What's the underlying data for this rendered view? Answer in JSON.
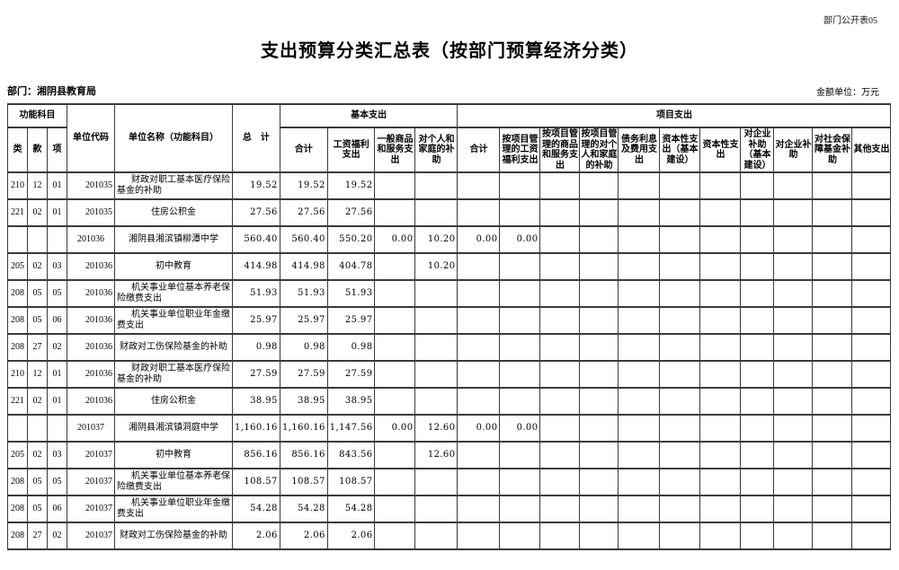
{
  "page": {
    "doc_code": "部门公开表05",
    "title": "支出预算分类汇总表（按部门预算经济分类）",
    "department_label": "部门：湘阴县教育局",
    "unit_label": "金额单位：万元"
  },
  "table": {
    "header": {
      "func_group": "功能科目",
      "func_cols": [
        "类",
        "款",
        "项"
      ],
      "unit_code": "单位代码",
      "unit_name": "单位名称（功能科目）",
      "total": "总　计",
      "basic_group": "基本支出",
      "basic_cols": [
        "合计",
        "工资福利支出",
        "一般商品和服务支出",
        "对个人和家庭的补助"
      ],
      "project_group": "项目支出",
      "project_cols": [
        "合计",
        "按项目管理的工资福利支出",
        "按项目管理的商品和服务支出",
        "按项目管理的对个人和家庭的补助",
        "债务利息及费用支出",
        "资本性支出（基本建设）",
        "资本性支出",
        "对企业补助（基本建设）",
        "对企业补助",
        "对社会保障基金补助",
        "其他支出"
      ]
    },
    "rows": [
      {
        "lei": "210",
        "kuan": "12",
        "xiang": "01",
        "code": "201035",
        "name": "财政对职工基本医疗保险基金的补助",
        "values": [
          "19.52",
          "19.52",
          "19.52",
          "",
          "",
          "",
          "",
          "",
          "",
          "",
          "",
          "",
          "",
          "",
          "",
          ""
        ]
      },
      {
        "lei": "221",
        "kuan": "02",
        "xiang": "01",
        "code": "201035",
        "name": "住房公积金",
        "values": [
          "27.56",
          "27.56",
          "27.56",
          "",
          "",
          "",
          "",
          "",
          "",
          "",
          "",
          "",
          "",
          "",
          "",
          ""
        ]
      },
      {
        "lei": "",
        "kuan": "",
        "xiang": "",
        "code": "201036",
        "name": "湘阴县湘滨镇柳潭中学",
        "values": [
          "560.40",
          "560.40",
          "550.20",
          "0.00",
          "10.20",
          "0.00",
          "0.00",
          "",
          "",
          "",
          "",
          "",
          "",
          "",
          "",
          ""
        ]
      },
      {
        "lei": "205",
        "kuan": "02",
        "xiang": "03",
        "code": "201036",
        "name": "初中教育",
        "values": [
          "414.98",
          "414.98",
          "404.78",
          "",
          "10.20",
          "",
          "",
          "",
          "",
          "",
          "",
          "",
          "",
          "",
          "",
          ""
        ]
      },
      {
        "lei": "208",
        "kuan": "05",
        "xiang": "05",
        "code": "201036",
        "name": "机关事业单位基本养老保险缴费支出",
        "values": [
          "51.93",
          "51.93",
          "51.93",
          "",
          "",
          "",
          "",
          "",
          "",
          "",
          "",
          "",
          "",
          "",
          "",
          ""
        ]
      },
      {
        "lei": "208",
        "kuan": "05",
        "xiang": "06",
        "code": "201036",
        "name": "机关事业单位职业年金缴费支出",
        "values": [
          "25.97",
          "25.97",
          "25.97",
          "",
          "",
          "",
          "",
          "",
          "",
          "",
          "",
          "",
          "",
          "",
          "",
          ""
        ]
      },
      {
        "lei": "208",
        "kuan": "27",
        "xiang": "02",
        "code": "201036",
        "name": "财政对工伤保险基金的补助",
        "values": [
          "0.98",
          "0.98",
          "0.98",
          "",
          "",
          "",
          "",
          "",
          "",
          "",
          "",
          "",
          "",
          "",
          "",
          ""
        ]
      },
      {
        "lei": "210",
        "kuan": "12",
        "xiang": "01",
        "code": "201036",
        "name": "财政对职工基本医疗保险基金的补助",
        "values": [
          "27.59",
          "27.59",
          "27.59",
          "",
          "",
          "",
          "",
          "",
          "",
          "",
          "",
          "",
          "",
          "",
          "",
          ""
        ]
      },
      {
        "lei": "221",
        "kuan": "02",
        "xiang": "01",
        "code": "201036",
        "name": "住房公积金",
        "values": [
          "38.95",
          "38.95",
          "38.95",
          "",
          "",
          "",
          "",
          "",
          "",
          "",
          "",
          "",
          "",
          "",
          "",
          ""
        ]
      },
      {
        "lei": "",
        "kuan": "",
        "xiang": "",
        "code": "201037",
        "name": "湘阴县湘滨镇洞庭中学",
        "values": [
          "1,160.16",
          "1,160.16",
          "1,147.56",
          "0.00",
          "12.60",
          "0.00",
          "0.00",
          "",
          "",
          "",
          "",
          "",
          "",
          "",
          "",
          ""
        ]
      },
      {
        "lei": "205",
        "kuan": "02",
        "xiang": "03",
        "code": "201037",
        "name": "初中教育",
        "values": [
          "856.16",
          "856.16",
          "843.56",
          "",
          "12.60",
          "",
          "",
          "",
          "",
          "",
          "",
          "",
          "",
          "",
          "",
          ""
        ]
      },
      {
        "lei": "208",
        "kuan": "05",
        "xiang": "05",
        "code": "201037",
        "name": "机关事业单位基本养老保险缴费支出",
        "values": [
          "108.57",
          "108.57",
          "108.57",
          "",
          "",
          "",
          "",
          "",
          "",
          "",
          "",
          "",
          "",
          "",
          "",
          ""
        ]
      },
      {
        "lei": "208",
        "kuan": "05",
        "xiang": "06",
        "code": "201037",
        "name": "机关事业单位职业年金缴费支出",
        "values": [
          "54.28",
          "54.28",
          "54.28",
          "",
          "",
          "",
          "",
          "",
          "",
          "",
          "",
          "",
          "",
          "",
          "",
          ""
        ]
      },
      {
        "lei": "208",
        "kuan": "27",
        "xiang": "02",
        "code": "201037",
        "name": "财政对工伤保险基金的补助",
        "values": [
          "2.06",
          "2.06",
          "2.06",
          "",
          "",
          "",
          "",
          "",
          "",
          "",
          "",
          "",
          "",
          "",
          "",
          ""
        ]
      }
    ]
  }
}
